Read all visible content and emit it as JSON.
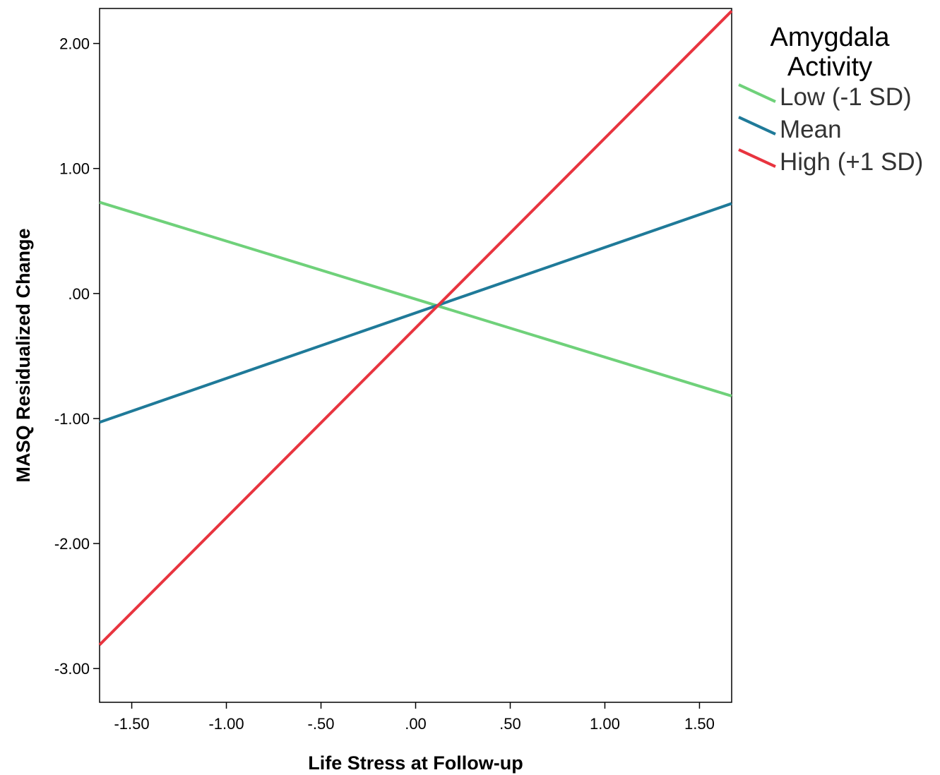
{
  "chart_data": {
    "type": "line",
    "xlabel": "Life Stress at Follow-up",
    "ylabel": "MASQ Residualized Change",
    "xlim": [
      -1.67,
      1.67
    ],
    "ylim": [
      -3.27,
      2.28
    ],
    "xticks": [
      -1.5,
      -1.0,
      -0.5,
      0.0,
      0.5,
      1.0,
      1.5
    ],
    "xtick_labels": [
      "-1.50",
      "-1.00",
      "-.50",
      ".00",
      ".50",
      "1.00",
      "1.50"
    ],
    "yticks": [
      2.0,
      1.0,
      0.0,
      -1.0,
      -2.0,
      -3.0
    ],
    "ytick_labels": [
      "2.00",
      "1.00",
      ".00",
      "-1.00",
      "-2.00",
      "-3.00"
    ],
    "grid": false,
    "legend": {
      "title_lines": [
        "Amygdala",
        "Activity"
      ],
      "placement": "right-top"
    },
    "series": [
      {
        "name": "Low (-1 SD)",
        "color": "#6fd17a",
        "x": [
          -1.67,
          1.67
        ],
        "y": [
          0.73,
          -0.82
        ]
      },
      {
        "name": "Mean",
        "color": "#1f7a99",
        "x": [
          -1.67,
          1.67
        ],
        "y": [
          -1.03,
          0.72
        ]
      },
      {
        "name": "High (+1 SD)",
        "color": "#e8343f",
        "x": [
          -1.67,
          1.67
        ],
        "y": [
          -2.81,
          2.26
        ]
      }
    ]
  }
}
